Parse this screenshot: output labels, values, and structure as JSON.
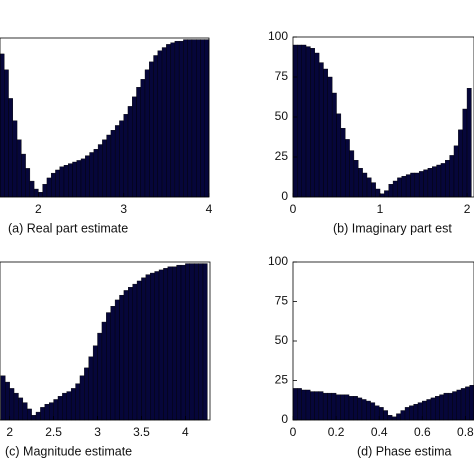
{
  "chart_data": [
    {
      "type": "histogram",
      "title": "(a) Real part estimate",
      "color": "#06063a",
      "xlim": [
        1.55,
        4
      ],
      "ylim": [
        0,
        100
      ],
      "xticks": [
        2,
        3,
        4
      ],
      "bins": [
        1.55,
        1.6,
        1.65,
        1.7,
        1.75,
        1.8,
        1.85,
        1.9,
        1.95,
        2,
        2.05,
        2.1,
        2.15,
        2.2,
        2.25,
        2.3,
        2.35,
        2.4,
        2.45,
        2.5,
        2.55,
        2.6,
        2.65,
        2.7,
        2.75,
        2.8,
        2.85,
        2.9,
        2.95,
        3,
        3.05,
        3.1,
        3.15,
        3.2,
        3.25,
        3.3,
        3.35,
        3.4,
        3.45,
        3.5,
        3.55,
        3.6,
        3.65,
        3.7,
        3.75,
        3.8,
        3.85,
        3.9,
        3.95,
        4
      ],
      "values": [
        90,
        80,
        62,
        48,
        36,
        27,
        18,
        10,
        5,
        3,
        8,
        12,
        15,
        17,
        19,
        20,
        21,
        22,
        23,
        24,
        26,
        28,
        30,
        33,
        36,
        39,
        42,
        45,
        48,
        52,
        57,
        63,
        69,
        74,
        80,
        85,
        89,
        92,
        94,
        96,
        97,
        98,
        98,
        99,
        99,
        99,
        99,
        99,
        99
      ]
    },
    {
      "type": "histogram",
      "title": "(b) Imaginary part est",
      "color": "#06063a",
      "xlim": [
        0,
        2.08
      ],
      "ylim": [
        0,
        100
      ],
      "xticks": [
        0,
        1,
        2
      ],
      "yticks": [
        0,
        25,
        50,
        75,
        100
      ],
      "bins": [
        0,
        0.05,
        0.1,
        0.15,
        0.2,
        0.25,
        0.3,
        0.35,
        0.4,
        0.45,
        0.5,
        0.55,
        0.6,
        0.65,
        0.7,
        0.75,
        0.8,
        0.85,
        0.9,
        0.95,
        1,
        1.05,
        1.1,
        1.15,
        1.2,
        1.25,
        1.3,
        1.35,
        1.4,
        1.45,
        1.5,
        1.55,
        1.6,
        1.65,
        1.7,
        1.75,
        1.8,
        1.85,
        1.9,
        1.95,
        2,
        2.05
      ],
      "values": [
        95,
        95,
        95,
        94,
        93,
        90,
        84,
        80,
        75,
        65,
        52,
        43,
        36,
        29,
        23,
        18,
        15,
        12,
        9,
        5,
        2,
        4,
        8,
        10,
        12,
        13,
        14,
        15,
        15,
        16,
        17,
        18,
        19,
        20,
        21,
        23,
        26,
        32,
        42,
        55,
        68
      ]
    },
    {
      "type": "histogram",
      "title": "(c) Magnitude estimate",
      "color": "#06063a",
      "xlim": [
        1.89,
        4.28
      ],
      "ylim": [
        0,
        100
      ],
      "xticks": [
        2,
        2.5,
        3,
        3.5,
        4
      ],
      "bins": [
        1.9,
        1.95,
        2,
        2.05,
        2.1,
        2.15,
        2.2,
        2.25,
        2.3,
        2.35,
        2.4,
        2.45,
        2.5,
        2.55,
        2.6,
        2.65,
        2.7,
        2.75,
        2.8,
        2.85,
        2.9,
        2.95,
        3,
        3.05,
        3.1,
        3.15,
        3.2,
        3.25,
        3.3,
        3.35,
        3.4,
        3.45,
        3.5,
        3.55,
        3.6,
        3.65,
        3.7,
        3.75,
        3.8,
        3.85,
        3.9,
        3.95,
        4,
        4.05,
        4.1,
        4.15,
        4.2,
        4.25
      ],
      "values": [
        28,
        24,
        20,
        17,
        14,
        11,
        7,
        3,
        5,
        8,
        10,
        11,
        13,
        15,
        17,
        18,
        20,
        23,
        28,
        33,
        40,
        47,
        55,
        62,
        68,
        72,
        76,
        79,
        82,
        84,
        86,
        88,
        90,
        92,
        93,
        94,
        95,
        96,
        97,
        97,
        98,
        98,
        99,
        99,
        99,
        99,
        99
      ]
    },
    {
      "type": "histogram",
      "title": "(d) Phase estima",
      "color": "#06063a",
      "xlim": [
        0,
        0.84
      ],
      "ylim": [
        0,
        100
      ],
      "xticks": [
        0,
        0.2,
        0.4,
        0.6,
        0.8
      ],
      "yticks": [
        0,
        25,
        50,
        75,
        100
      ],
      "bins": [
        0,
        0.02,
        0.04,
        0.06,
        0.08,
        0.1,
        0.12,
        0.14,
        0.16,
        0.18,
        0.2,
        0.22,
        0.24,
        0.26,
        0.28,
        0.3,
        0.32,
        0.34,
        0.36,
        0.38,
        0.4,
        0.42,
        0.44,
        0.46,
        0.48,
        0.5,
        0.52,
        0.54,
        0.56,
        0.58,
        0.6,
        0.62,
        0.64,
        0.66,
        0.68,
        0.7,
        0.72,
        0.74,
        0.76,
        0.78,
        0.8,
        0.82,
        0.84
      ],
      "values": [
        20,
        20,
        19,
        19,
        18,
        18,
        18,
        17,
        17,
        17,
        16,
        16,
        16,
        15,
        15,
        14,
        13,
        12,
        11,
        9,
        8,
        6,
        3,
        2,
        4,
        6,
        8,
        9,
        10,
        11,
        12,
        13,
        14,
        15,
        16,
        17,
        17,
        18,
        19,
        20,
        21,
        22
      ]
    }
  ]
}
